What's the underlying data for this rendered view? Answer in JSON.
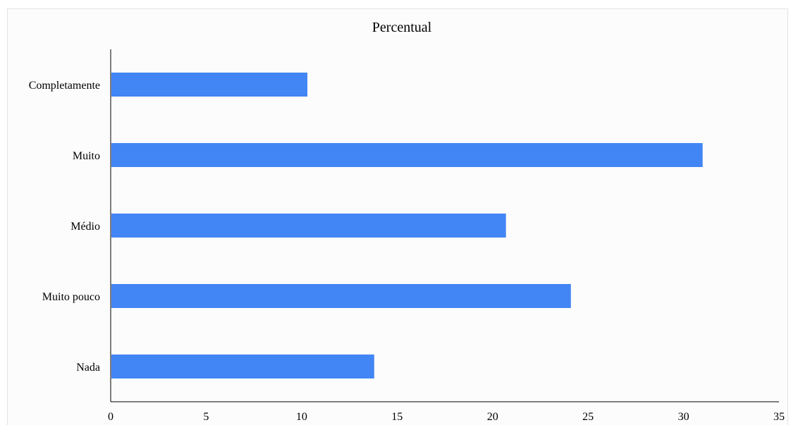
{
  "chart_data": {
    "type": "bar",
    "orientation": "horizontal",
    "title": "Percentual",
    "xlabel": "",
    "ylabel": "",
    "categories": [
      "Completamente",
      "Muito",
      "Médio",
      "Muito pouco",
      "Nada"
    ],
    "values": [
      10.3,
      31.0,
      20.7,
      24.1,
      13.8
    ],
    "xlim": [
      0,
      35
    ],
    "xticks": [
      0,
      5,
      10,
      15,
      20,
      25,
      30,
      35
    ],
    "grid": false,
    "legend": "none",
    "bar_color": "#4285f4"
  }
}
